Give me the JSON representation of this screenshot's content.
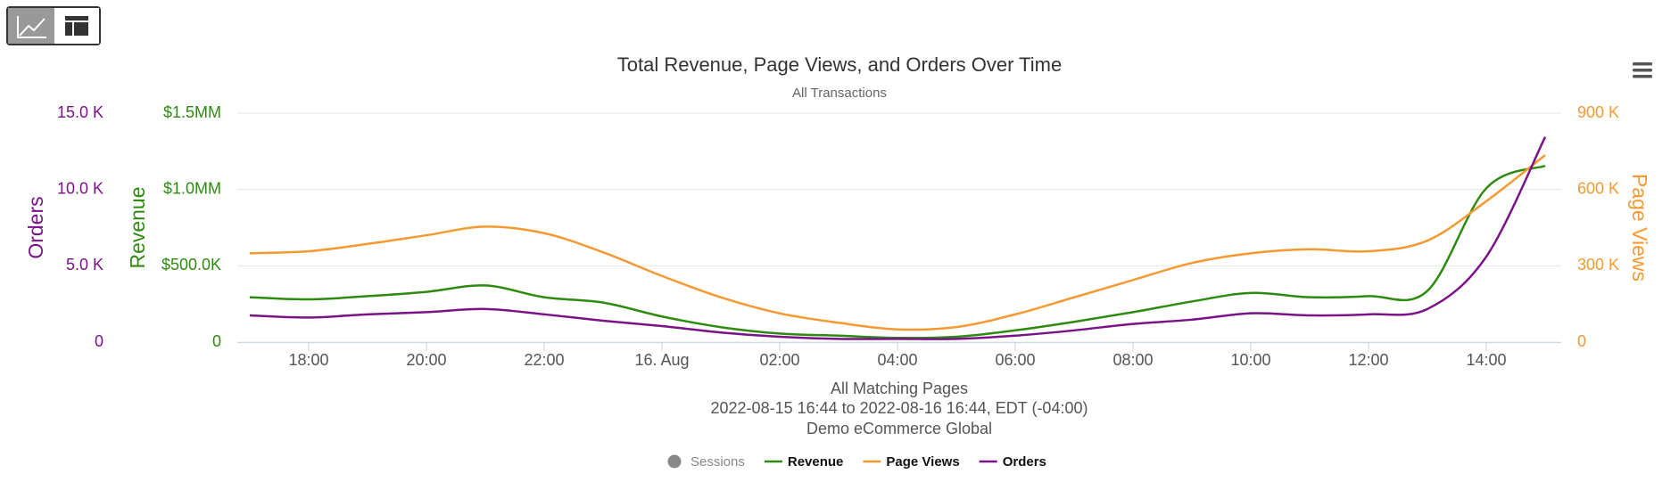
{
  "chart_data": {
    "type": "line",
    "title": "Total Revenue, Page Views, and Orders Over Time",
    "subtitle": "All Transactions",
    "footer": [
      "All Matching Pages",
      "2022-08-15 16:44 to 2022-08-16 16:44, EDT (-04:00)",
      "Demo eCommerce Global"
    ],
    "categories": [
      null,
      "18:00",
      null,
      "20:00",
      null,
      "22:00",
      null,
      "16. Aug",
      null,
      "02:00",
      null,
      "04:00",
      null,
      "06:00",
      null,
      "08:00",
      null,
      "10:00",
      null,
      "12:00",
      null,
      "14:00",
      null
    ],
    "grid": true,
    "y_axes": [
      {
        "label": "Orders",
        "color": "#7b1388",
        "lim": [
          0,
          15000
        ],
        "ticks": [
          0,
          {
            "value": 5000,
            "label": "5.0 K"
          },
          {
            "value": 10000,
            "label": "10.0 K"
          },
          {
            "value": 15000,
            "label": "15.0 K"
          }
        ]
      },
      {
        "label": "Revenue",
        "color": "#2e8b0f",
        "lim": [
          0,
          1500000
        ],
        "ticks": [
          0,
          {
            "value": 500000,
            "label": "$500.0K"
          },
          {
            "value": 1000000,
            "label": "$1.0MM"
          },
          {
            "value": 1500000,
            "label": "$1.5MM"
          }
        ]
      },
      {
        "label": "Page Views",
        "color": "#f59a32",
        "lim": [
          0,
          900000
        ],
        "ticks": [
          0,
          {
            "value": 300000,
            "label": "300 K"
          },
          {
            "value": 600000,
            "label": "600 K"
          },
          {
            "value": 900000,
            "label": "900 K"
          }
        ]
      }
    ],
    "series": [
      {
        "name": "Sessions",
        "color": "#888888",
        "visible": false
      },
      {
        "name": "Revenue",
        "color": "#2e8b0f",
        "axis": 1,
        "values": [
          294000,
          280000,
          301000,
          329000,
          371000,
          294000,
          259000,
          168000,
          98000,
          56000,
          42000,
          28000,
          35000,
          77000,
          133000,
          196000,
          266000,
          322000,
          294000,
          301000,
          336000,
          1008000,
          1155000
        ]
      },
      {
        "name": "Page Views",
        "color": "#f59a32",
        "axis": 2,
        "values": [
          349000,
          357000,
          386000,
          420000,
          454000,
          428000,
          353000,
          260000,
          176000,
          113000,
          76000,
          50000,
          59000,
          109000,
          176000,
          244000,
          311000,
          349000,
          365000,
          357000,
          399000,
          554000,
          735000
        ]
      },
      {
        "name": "Orders",
        "color": "#7b1388",
        "axis": 0,
        "values": [
          1750,
          1610,
          1820,
          1960,
          2170,
          1820,
          1400,
          1050,
          630,
          350,
          210,
          210,
          210,
          420,
          770,
          1190,
          1470,
          1890,
          1750,
          1820,
          2170,
          5600,
          13440
        ]
      }
    ]
  }
}
